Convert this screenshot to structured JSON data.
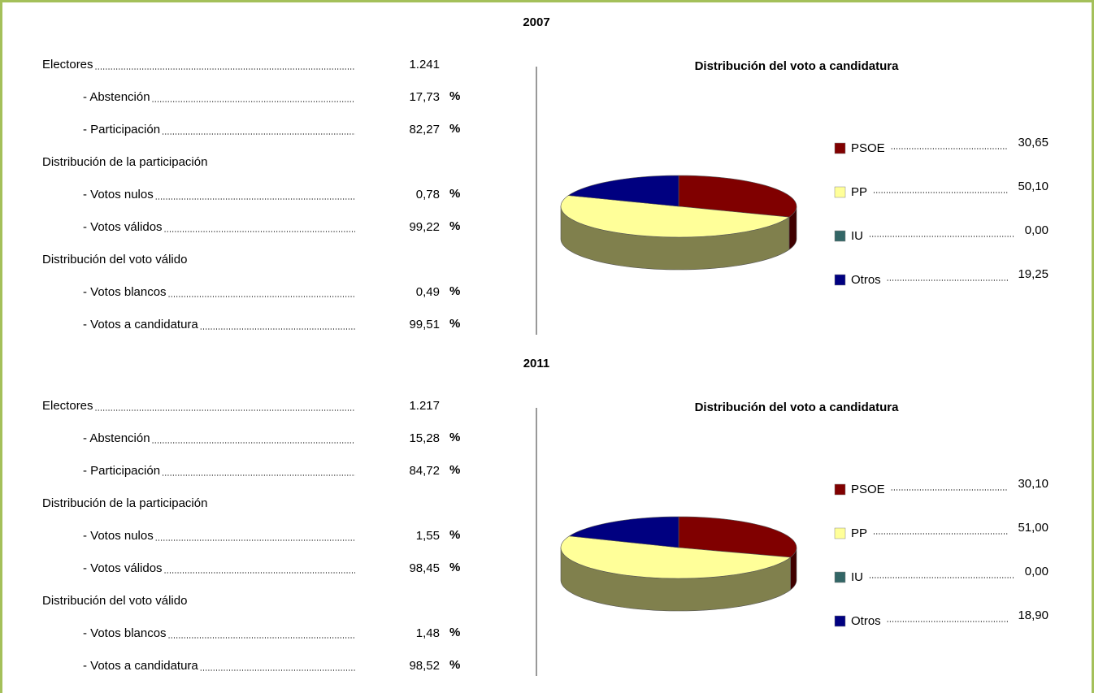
{
  "sections": [
    {
      "year": "2007",
      "rows": [
        {
          "label": "Electores",
          "value": "1.241"
        },
        {
          "label": "- Abstención",
          "value": "17,73",
          "unit": "%"
        },
        {
          "label": "- Participación",
          "value": "82,27",
          "unit": "%"
        },
        {
          "label": "Distribución de la participación"
        },
        {
          "label": "- Votos nulos",
          "value": "0,78",
          "unit": "%"
        },
        {
          "label": "- Votos válidos",
          "value": "99,22",
          "unit": "%"
        },
        {
          "label": "Distribución del voto válido"
        },
        {
          "label": "- Votos blancos",
          "value": "0,49",
          "unit": "%"
        },
        {
          "label": "- Votos a candidatura",
          "value": "99,51",
          "unit": "%"
        }
      ],
      "pie": {
        "title": "Distribución del voto a candidatura",
        "entries": [
          {
            "name": "PSOE",
            "color": "#800000",
            "value": 30.65,
            "label": "30,65"
          },
          {
            "name": "PP",
            "color": "#ffff99",
            "value": 50.1,
            "label": "50,10"
          },
          {
            "name": "IU",
            "color": "#336666",
            "value": 0.0,
            "label": "0,00"
          },
          {
            "name": "Otros",
            "color": "#000080",
            "value": 19.25,
            "label": "19,25"
          }
        ]
      }
    },
    {
      "year": "2011",
      "rows": [
        {
          "label": "Electores",
          "value": "1.217"
        },
        {
          "label": "- Abstención",
          "value": "15,28",
          "unit": "%"
        },
        {
          "label": "- Participación",
          "value": "84,72",
          "unit": "%"
        },
        {
          "label": "Distribución de la participación"
        },
        {
          "label": "- Votos nulos",
          "value": "1,55",
          "unit": "%"
        },
        {
          "label": "- Votos válidos",
          "value": "98,45",
          "unit": "%"
        },
        {
          "label": "Distribución del voto válido"
        },
        {
          "label": "- Votos blancos",
          "value": "1,48",
          "unit": "%"
        },
        {
          "label": "- Votos a candidatura",
          "value": "98,52",
          "unit": "%"
        }
      ],
      "pie": {
        "title": "Distribución del voto a candidatura",
        "entries": [
          {
            "name": "PSOE",
            "color": "#800000",
            "value": 30.1,
            "label": "30,10"
          },
          {
            "name": "PP",
            "color": "#ffff99",
            "value": 51.0,
            "label": "51,00"
          },
          {
            "name": "IU",
            "color": "#336666",
            "value": 0.0,
            "label": "0,00"
          },
          {
            "name": "Otros",
            "color": "#000080",
            "value": 18.9,
            "label": "18,90"
          }
        ]
      }
    }
  ]
}
